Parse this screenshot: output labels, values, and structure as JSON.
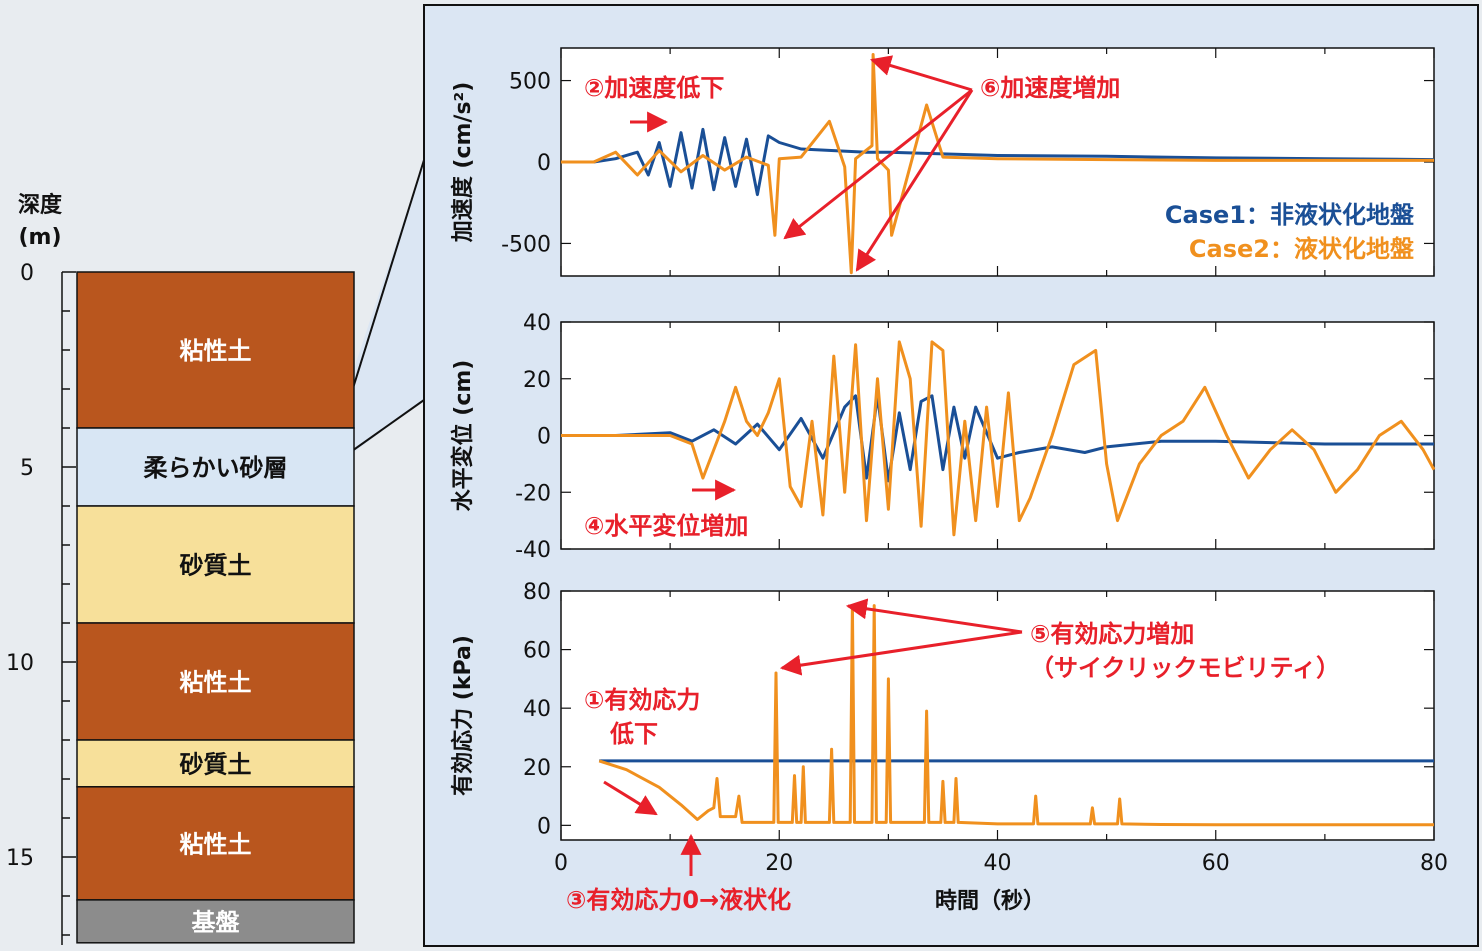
{
  "column": {
    "depth_title": [
      "深度",
      "(m)"
    ],
    "depth_ticks": [
      0,
      5,
      10,
      15
    ],
    "depth_range": [
      0,
      17
    ],
    "layers": [
      {
        "label": "粘性土",
        "top": 0,
        "bottom": 4,
        "color": "#b9561e",
        "text_color": "#ffffff"
      },
      {
        "label": "柔らかい砂層",
        "top": 4,
        "bottom": 6,
        "color": "#d8e6f4",
        "text_color": "#111111"
      },
      {
        "label": "砂質土",
        "top": 6,
        "bottom": 9,
        "color": "#f7e09a",
        "text_color": "#111111"
      },
      {
        "label": "粘性土",
        "top": 9,
        "bottom": 12,
        "color": "#b9561e",
        "text_color": "#ffffff"
      },
      {
        "label": "砂質土",
        "top": 12,
        "bottom": 13.2,
        "color": "#f7e09a",
        "text_color": "#111111"
      },
      {
        "label": "粘性土",
        "top": 13.2,
        "bottom": 16.1,
        "color": "#b9561e",
        "text_color": "#ffffff"
      },
      {
        "label": "基盤",
        "top": 16.1,
        "bottom": 17.2,
        "color": "#8c8c8c",
        "text_color": "#ffffff"
      }
    ]
  },
  "colors": {
    "case1": "#1a4f96",
    "case2": "#f0901e",
    "annotation": "#e8202a",
    "panel_bg": "#dbe6f3"
  },
  "chart_data": [
    {
      "type": "line",
      "ylabel": "加速度 (cm/s²)",
      "xlim": [
        0,
        80
      ],
      "ylim": [
        -700,
        700
      ],
      "yticks": [
        -500,
        0,
        500
      ],
      "legend": [
        "Case1：非液状化地盤",
        "Case2：液状化地盤"
      ],
      "legend_position": "bottom-right",
      "series": [
        {
          "name": "Case1：非液状化地盤",
          "x": [
            0,
            3,
            5,
            7,
            8,
            9,
            10,
            11,
            12,
            13,
            14,
            15,
            16,
            17,
            18,
            19,
            20,
            22,
            25,
            28,
            30,
            35,
            40,
            50,
            60,
            70,
            80
          ],
          "y": [
            0,
            0,
            20,
            60,
            -80,
            120,
            -150,
            180,
            -160,
            200,
            -170,
            150,
            -150,
            140,
            -200,
            160,
            120,
            80,
            70,
            60,
            60,
            50,
            40,
            35,
            25,
            20,
            15
          ]
        },
        {
          "name": "Case2：液状化地盤",
          "x": [
            0,
            3,
            5,
            7,
            9,
            11,
            13,
            15,
            17,
            19,
            19.6,
            20,
            22,
            24.6,
            26,
            26.6,
            27,
            28.5,
            28.6,
            29,
            30,
            30.3,
            33.5,
            35,
            40,
            50,
            60,
            70,
            80
          ],
          "y": [
            0,
            0,
            60,
            -80,
            70,
            -60,
            40,
            -50,
            30,
            -20,
            -450,
            20,
            30,
            250,
            -30,
            -680,
            20,
            100,
            660,
            20,
            -50,
            -450,
            350,
            30,
            20,
            15,
            10,
            10,
            10
          ]
        }
      ]
    },
    {
      "type": "line",
      "ylabel": "水平変位 (cm)",
      "xlim": [
        0,
        80
      ],
      "ylim": [
        -40,
        40
      ],
      "yticks": [
        -40,
        -20,
        0,
        20,
        40
      ],
      "series": [
        {
          "name": "Case1：非液状化地盤",
          "x": [
            0,
            5,
            10,
            12,
            14,
            16,
            18,
            20,
            22,
            24,
            26,
            27,
            28,
            29,
            30,
            31,
            32,
            33,
            34,
            35,
            36,
            37,
            38,
            40,
            42,
            45,
            48,
            50,
            55,
            60,
            70,
            80
          ],
          "y": [
            0,
            0,
            1,
            -2,
            2,
            -3,
            4,
            -5,
            6,
            -8,
            10,
            14,
            -15,
            14,
            -16,
            8,
            -12,
            12,
            14,
            -12,
            10,
            -8,
            10,
            -8,
            -6,
            -4,
            -6,
            -4,
            -2,
            -2,
            -3,
            -3
          ]
        },
        {
          "name": "Case2：液状化地盤",
          "x": [
            0,
            5,
            10,
            12,
            13,
            15,
            16,
            17,
            18,
            19,
            20,
            21,
            22,
            23,
            24,
            25,
            26,
            27,
            28,
            29,
            30,
            31,
            32,
            33,
            34,
            35,
            36,
            37,
            38,
            39,
            40,
            41,
            42,
            43,
            45,
            47,
            49,
            50,
            51,
            53,
            55,
            57,
            59,
            61,
            63,
            65,
            67,
            69,
            71,
            73,
            75,
            77,
            79,
            80
          ],
          "y": [
            0,
            0,
            0,
            -3,
            -15,
            5,
            17,
            5,
            0,
            8,
            20,
            -18,
            -25,
            5,
            -28,
            28,
            -20,
            32,
            -30,
            20,
            -26,
            33,
            20,
            -32,
            33,
            30,
            -35,
            5,
            -30,
            10,
            -25,
            15,
            -30,
            -22,
            0,
            25,
            30,
            -10,
            -30,
            -10,
            0,
            5,
            17,
            0,
            -15,
            -5,
            2,
            -5,
            -20,
            -12,
            0,
            5,
            -5,
            -12
          ]
        }
      ]
    },
    {
      "type": "line",
      "ylabel": "有効応力 (kPa)",
      "xlabel": "時間（秒）",
      "xlim": [
        0,
        80
      ],
      "ylim": [
        -5,
        80
      ],
      "yticks": [
        0,
        20,
        40,
        60,
        80
      ],
      "xticks": [
        0,
        20,
        40,
        60,
        80
      ],
      "series": [
        {
          "name": "Case1：非液状化地盤",
          "x": [
            3.5,
            80
          ],
          "y": [
            22,
            22
          ]
        },
        {
          "name": "Case2：液状化地盤",
          "x": [
            3.5,
            6,
            9,
            11,
            12.5,
            13.5,
            14,
            14.3,
            14.6,
            16,
            16.3,
            16.6,
            19.5,
            19.7,
            19.9,
            21.2,
            21.4,
            21.6,
            22,
            22.2,
            22.4,
            24.6,
            24.8,
            25,
            26.5,
            26.7,
            26.9,
            28.5,
            28.7,
            28.9,
            29.8,
            30,
            30.2,
            33.3,
            33.5,
            33.7,
            34.8,
            35,
            35.2,
            36,
            36.2,
            36.4,
            40,
            43.3,
            43.5,
            43.7,
            48.5,
            48.7,
            48.9,
            51,
            51.2,
            51.4,
            55,
            60,
            70,
            80
          ],
          "y": [
            22,
            19,
            13,
            7,
            2,
            5,
            6,
            16,
            3,
            3,
            10,
            1,
            1,
            52,
            1,
            1,
            17,
            1,
            1,
            20,
            1,
            1,
            26,
            1,
            1,
            75,
            1,
            1,
            75,
            1,
            1,
            50,
            1,
            1,
            39,
            1,
            1,
            15,
            1,
            1,
            16,
            1,
            0.5,
            0.5,
            10,
            0.5,
            0.5,
            6,
            0.5,
            0.5,
            9,
            0.5,
            0.3,
            0.2,
            0.2,
            0.2
          ]
        }
      ]
    }
  ],
  "annotations": {
    "acc_decrease": "②加速度低下",
    "acc_increase": "⑥加速度増加",
    "disp_increase": "④水平変位増加",
    "stress_decrease_1": "①有効応力",
    "stress_decrease_2": "低下",
    "liquefaction": "③有効応力0→液状化",
    "stress_increase_1": "⑤有効応力増加",
    "stress_increase_2": "（サイクリックモビリティ）"
  }
}
